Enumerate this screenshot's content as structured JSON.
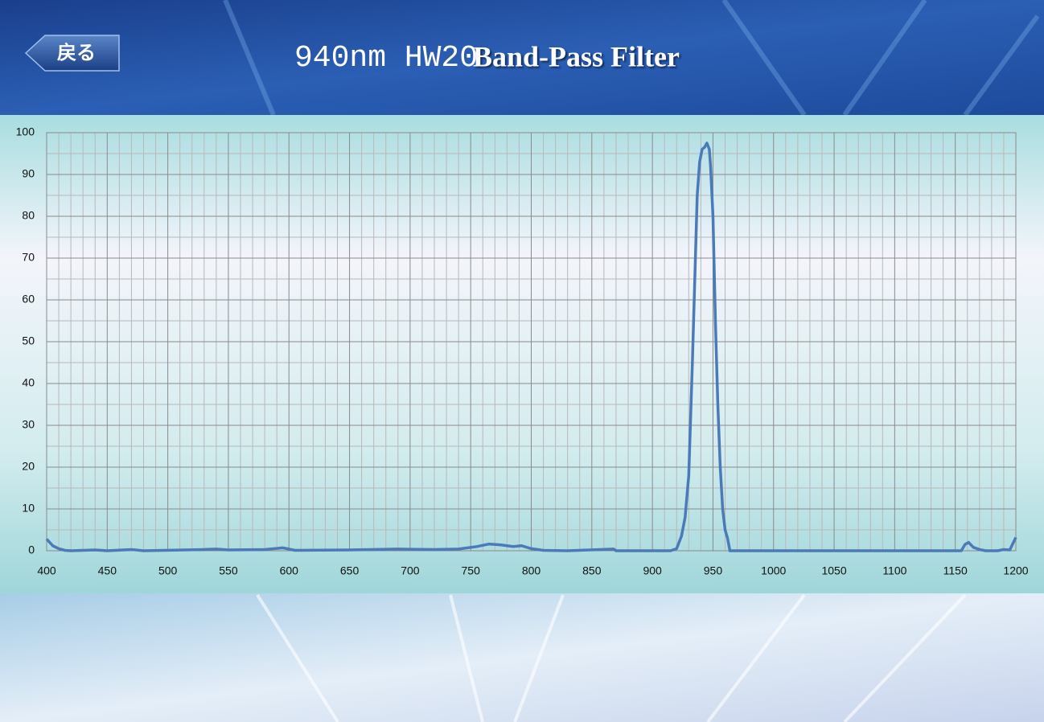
{
  "header": {
    "back": "戻る",
    "title_main": "940nm HW20",
    "title_sub": "Band-Pass Filter"
  },
  "chart_data": {
    "type": "line",
    "x": [
      400,
      405,
      410,
      415,
      420,
      440,
      450,
      470,
      480,
      530,
      540,
      550,
      580,
      595,
      605,
      650,
      690,
      720,
      740,
      755,
      765,
      775,
      785,
      792,
      800,
      810,
      830,
      868,
      870,
      915,
      920,
      924,
      927,
      930,
      933,
      935,
      937,
      939,
      941,
      943,
      945,
      947,
      948,
      950,
      952,
      954,
      956,
      958,
      960,
      962,
      964,
      1000,
      1155,
      1158,
      1161,
      1165,
      1170,
      1175,
      1185,
      1190,
      1195,
      1200
    ],
    "series": [
      {
        "color": "#4a7ab8",
        "values": [
          2.8,
          1.2,
          0.5,
          0.1,
          0,
          0.2,
          0,
          0.3,
          0,
          0.3,
          0.4,
          0.2,
          0.3,
          0.7,
          0.1,
          0.2,
          0.4,
          0.3,
          0.4,
          1,
          1.6,
          1.4,
          1,
          1.2,
          0.5,
          0.1,
          0,
          0.4,
          0,
          0,
          0.5,
          3.5,
          8,
          18,
          45,
          65,
          85,
          93,
          96,
          96.5,
          97.5,
          96,
          92,
          80,
          55,
          35,
          20,
          10,
          5,
          3,
          0,
          0,
          0,
          1.5,
          2,
          0.8,
          0.3,
          0,
          0,
          0.3,
          0.2,
          3.2
        ]
      }
    ],
    "xlim": [
      400,
      1200
    ],
    "xticks": [
      400,
      450,
      500,
      550,
      600,
      650,
      700,
      750,
      800,
      850,
      900,
      950,
      1000,
      1050,
      1100,
      1150,
      1200
    ],
    "ylim": [
      0,
      100
    ],
    "yticks": [
      0,
      10,
      20,
      30,
      40,
      50,
      60,
      70,
      80,
      90,
      100
    ],
    "grid": true,
    "minor_grid": true
  }
}
